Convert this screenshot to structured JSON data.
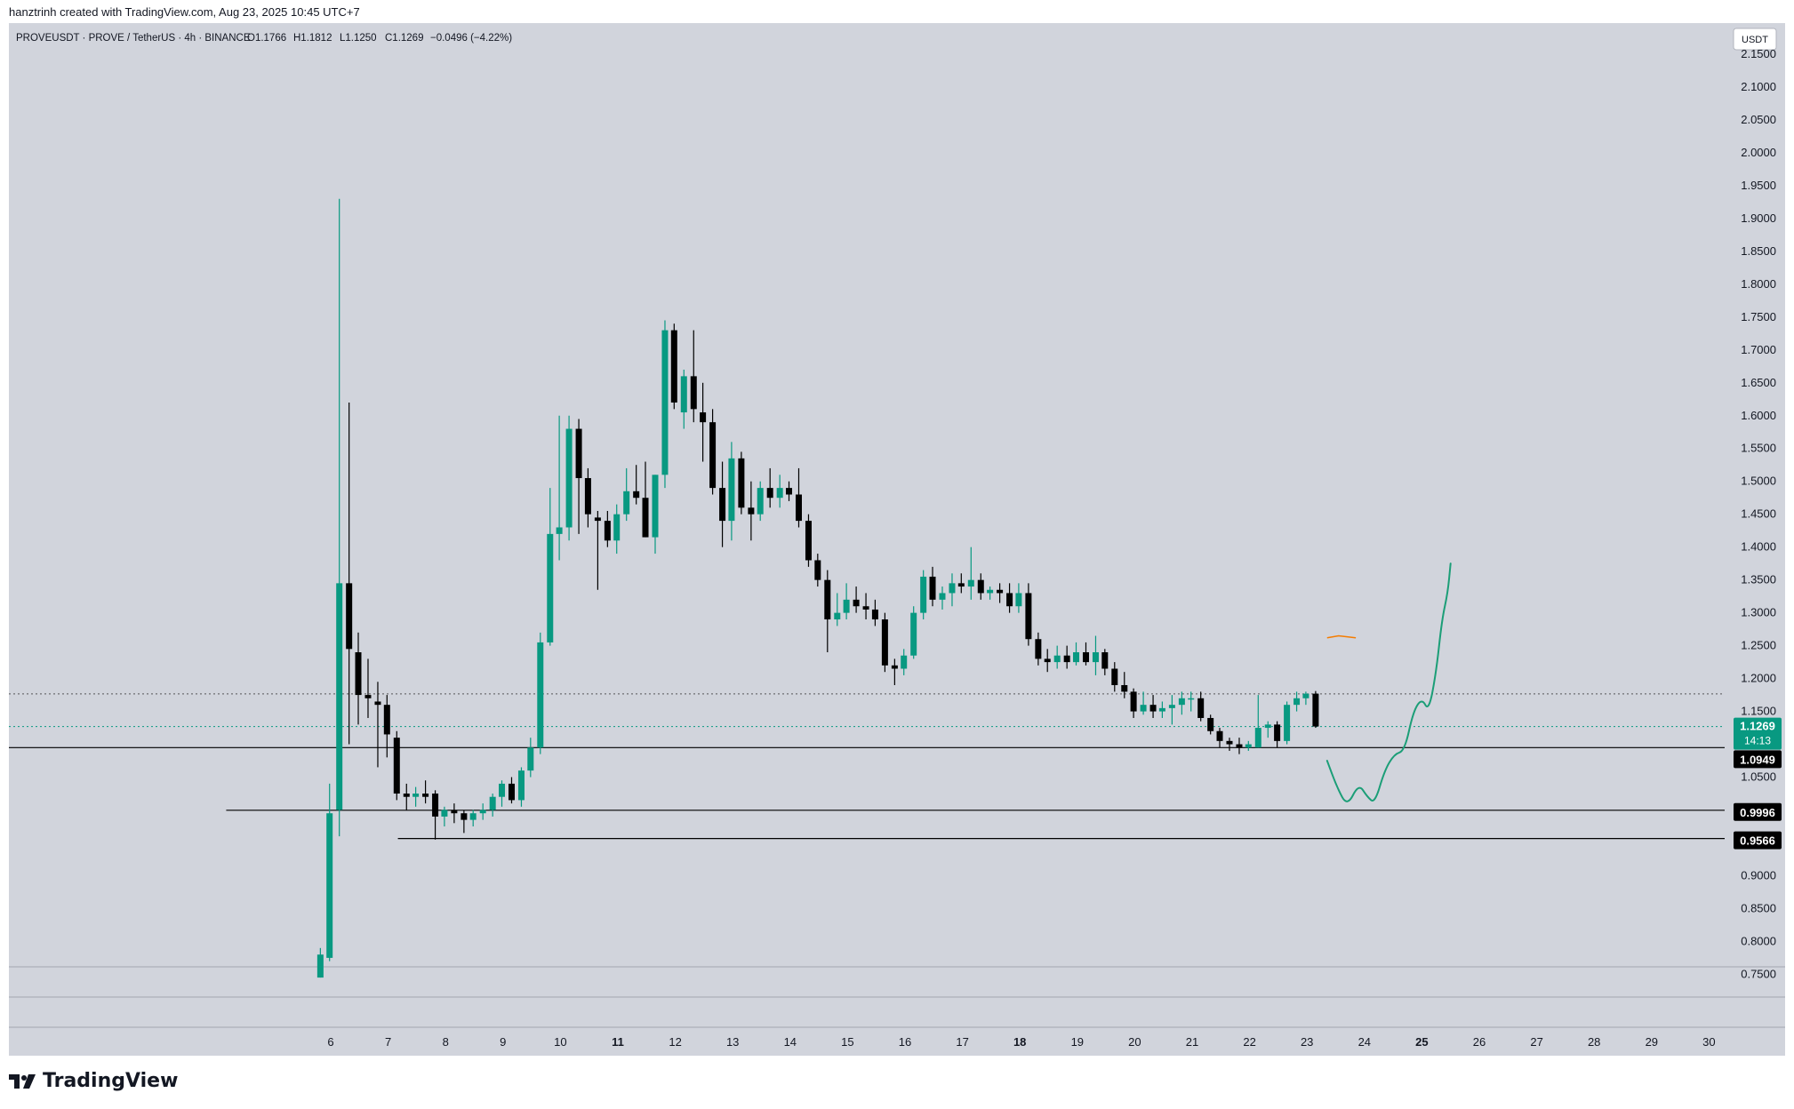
{
  "attribution": "hanztrinh created with TradingView.com, Aug 23, 2025 10:45 UTC+7",
  "logo_text": "TradingView",
  "colors": {
    "background": "#d1d4dc",
    "bull": "#089981",
    "bear": "#000000",
    "drawing": "#1b9e77",
    "orange": "#f57c00"
  },
  "legend": {
    "symbol": "PROVEUSDT · PROVE / TetherUS · 4h · BINANCE",
    "open": "O1.1766",
    "high": "H1.1812",
    "low": "L1.1250",
    "close": "C1.1269",
    "change": "−0.0496 (−4.22%)"
  },
  "currency_label": "USDT",
  "chart_data": {
    "type": "candlestick",
    "symbol": "PROVEUSDT",
    "interval": "4h",
    "exchange": "BINANCE",
    "ylim": [
      0.735,
      2.175
    ],
    "y_ticks": [
      "2.1500",
      "2.1000",
      "2.0500",
      "2.0000",
      "1.9500",
      "1.9000",
      "1.8500",
      "1.8000",
      "1.7500",
      "1.7000",
      "1.6500",
      "1.6000",
      "1.5500",
      "1.5000",
      "1.4500",
      "1.4000",
      "1.3500",
      "1.3000",
      "1.2500",
      "1.2000",
      "1.1500",
      "1.1000",
      "1.0500",
      "1.0000",
      "0.9500",
      "0.9000",
      "0.8500",
      "0.8000",
      "0.7500"
    ],
    "y_tick_values": [
      2.15,
      2.1,
      2.05,
      2.0,
      1.95,
      1.9,
      1.85,
      1.8,
      1.75,
      1.7,
      1.65,
      1.6,
      1.55,
      1.5,
      1.45,
      1.4,
      1.35,
      1.3,
      1.25,
      1.2,
      1.15,
      1.1,
      1.05,
      1.0,
      0.95,
      0.9,
      0.85,
      0.8,
      0.75
    ],
    "x_ticks": [
      {
        "label": "6",
        "day": 6,
        "bold": false
      },
      {
        "label": "7",
        "day": 7,
        "bold": false
      },
      {
        "label": "8",
        "day": 8,
        "bold": false
      },
      {
        "label": "9",
        "day": 9,
        "bold": false
      },
      {
        "label": "10",
        "day": 10,
        "bold": false
      },
      {
        "label": "11",
        "day": 11,
        "bold": true
      },
      {
        "label": "12",
        "day": 12,
        "bold": false
      },
      {
        "label": "13",
        "day": 13,
        "bold": false
      },
      {
        "label": "14",
        "day": 14,
        "bold": false
      },
      {
        "label": "15",
        "day": 15,
        "bold": false
      },
      {
        "label": "16",
        "day": 16,
        "bold": false
      },
      {
        "label": "17",
        "day": 17,
        "bold": false
      },
      {
        "label": "18",
        "day": 18,
        "bold": true
      },
      {
        "label": "19",
        "day": 19,
        "bold": false
      },
      {
        "label": "20",
        "day": 20,
        "bold": false
      },
      {
        "label": "21",
        "day": 21,
        "bold": false
      },
      {
        "label": "22",
        "day": 22,
        "bold": false
      },
      {
        "label": "23",
        "day": 23,
        "bold": false
      },
      {
        "label": "24",
        "day": 24,
        "bold": false
      },
      {
        "label": "25",
        "day": 25,
        "bold": true
      },
      {
        "label": "26",
        "day": 26,
        "bold": false
      },
      {
        "label": "27",
        "day": 27,
        "bold": false
      },
      {
        "label": "28",
        "day": 28,
        "bold": false
      },
      {
        "label": "29",
        "day": 29,
        "bold": false
      },
      {
        "label": "30",
        "day": 30,
        "bold": false
      }
    ],
    "candles": [
      {
        "t": 5.82,
        "o": 0.745,
        "h": 0.79,
        "l": 0.745,
        "c": 0.78
      },
      {
        "t": 5.98,
        "o": 0.775,
        "h": 1.04,
        "l": 0.77,
        "c": 0.995
      },
      {
        "t": 6.15,
        "o": 1.0,
        "h": 1.93,
        "l": 0.96,
        "c": 1.345
      },
      {
        "t": 6.32,
        "o": 1.345,
        "h": 1.62,
        "l": 1.1,
        "c": 1.245
      },
      {
        "t": 6.48,
        "o": 1.24,
        "h": 1.27,
        "l": 1.13,
        "c": 1.175
      },
      {
        "t": 6.65,
        "o": 1.175,
        "h": 1.23,
        "l": 1.14,
        "c": 1.17
      },
      {
        "t": 6.82,
        "o": 1.165,
        "h": 1.195,
        "l": 1.065,
        "c": 1.16
      },
      {
        "t": 6.98,
        "o": 1.16,
        "h": 1.175,
        "l": 1.08,
        "c": 1.115
      },
      {
        "t": 7.15,
        "o": 1.11,
        "h": 1.12,
        "l": 1.015,
        "c": 1.025
      },
      {
        "t": 7.32,
        "o": 1.025,
        "h": 1.04,
        "l": 1.0,
        "c": 1.02
      },
      {
        "t": 7.48,
        "o": 1.02,
        "h": 1.035,
        "l": 1.005,
        "c": 1.025
      },
      {
        "t": 7.65,
        "o": 1.025,
        "h": 1.045,
        "l": 1.01,
        "c": 1.02
      },
      {
        "t": 7.82,
        "o": 1.025,
        "h": 1.03,
        "l": 0.955,
        "c": 0.99
      },
      {
        "t": 7.98,
        "o": 0.99,
        "h": 1.005,
        "l": 0.975,
        "c": 1.0
      },
      {
        "t": 8.15,
        "o": 1.0,
        "h": 1.01,
        "l": 0.98,
        "c": 0.995
      },
      {
        "t": 8.32,
        "o": 0.995,
        "h": 1.0,
        "l": 0.965,
        "c": 0.985
      },
      {
        "t": 8.48,
        "o": 0.985,
        "h": 1.0,
        "l": 0.975,
        "c": 0.995
      },
      {
        "t": 8.65,
        "o": 0.995,
        "h": 1.01,
        "l": 0.985,
        "c": 1.0
      },
      {
        "t": 8.82,
        "o": 1.0,
        "h": 1.025,
        "l": 0.99,
        "c": 1.02
      },
      {
        "t": 8.98,
        "o": 1.02,
        "h": 1.045,
        "l": 1.005,
        "c": 1.04
      },
      {
        "t": 9.15,
        "o": 1.04,
        "h": 1.05,
        "l": 1.01,
        "c": 1.015
      },
      {
        "t": 9.32,
        "o": 1.015,
        "h": 1.065,
        "l": 1.005,
        "c": 1.06
      },
      {
        "t": 9.48,
        "o": 1.06,
        "h": 1.11,
        "l": 1.05,
        "c": 1.095
      },
      {
        "t": 9.65,
        "o": 1.095,
        "h": 1.27,
        "l": 1.085,
        "c": 1.255
      },
      {
        "t": 9.82,
        "o": 1.255,
        "h": 1.49,
        "l": 1.25,
        "c": 1.42
      },
      {
        "t": 9.98,
        "o": 1.42,
        "h": 1.6,
        "l": 1.38,
        "c": 1.43
      },
      {
        "t": 10.15,
        "o": 1.43,
        "h": 1.6,
        "l": 1.41,
        "c": 1.58
      },
      {
        "t": 10.32,
        "o": 1.58,
        "h": 1.595,
        "l": 1.42,
        "c": 1.505
      },
      {
        "t": 10.48,
        "o": 1.505,
        "h": 1.52,
        "l": 1.43,
        "c": 1.45
      },
      {
        "t": 10.65,
        "o": 1.445,
        "h": 1.455,
        "l": 1.335,
        "c": 1.44
      },
      {
        "t": 10.82,
        "o": 1.44,
        "h": 1.455,
        "l": 1.4,
        "c": 1.41
      },
      {
        "t": 10.98,
        "o": 1.41,
        "h": 1.465,
        "l": 1.39,
        "c": 1.45
      },
      {
        "t": 11.15,
        "o": 1.45,
        "h": 1.52,
        "l": 1.44,
        "c": 1.485
      },
      {
        "t": 11.32,
        "o": 1.485,
        "h": 1.525,
        "l": 1.465,
        "c": 1.475
      },
      {
        "t": 11.48,
        "o": 1.475,
        "h": 1.53,
        "l": 1.415,
        "c": 1.415
      },
      {
        "t": 11.65,
        "o": 1.415,
        "h": 1.51,
        "l": 1.39,
        "c": 1.51
      },
      {
        "t": 11.82,
        "o": 1.51,
        "h": 1.745,
        "l": 1.49,
        "c": 1.73
      },
      {
        "t": 11.98,
        "o": 1.73,
        "h": 1.74,
        "l": 1.61,
        "c": 1.62
      },
      {
        "t": 12.15,
        "o": 1.605,
        "h": 1.67,
        "l": 1.58,
        "c": 1.66
      },
      {
        "t": 12.32,
        "o": 1.66,
        "h": 1.73,
        "l": 1.59,
        "c": 1.61
      },
      {
        "t": 12.48,
        "o": 1.605,
        "h": 1.65,
        "l": 1.53,
        "c": 1.59
      },
      {
        "t": 12.65,
        "o": 1.59,
        "h": 1.61,
        "l": 1.48,
        "c": 1.49
      },
      {
        "t": 12.82,
        "o": 1.49,
        "h": 1.53,
        "l": 1.4,
        "c": 1.44
      },
      {
        "t": 12.98,
        "o": 1.44,
        "h": 1.56,
        "l": 1.41,
        "c": 1.535
      },
      {
        "t": 13.15,
        "o": 1.535,
        "h": 1.545,
        "l": 1.45,
        "c": 1.46
      },
      {
        "t": 13.32,
        "o": 1.46,
        "h": 1.5,
        "l": 1.41,
        "c": 1.45
      },
      {
        "t": 13.48,
        "o": 1.45,
        "h": 1.5,
        "l": 1.44,
        "c": 1.49
      },
      {
        "t": 13.65,
        "o": 1.49,
        "h": 1.52,
        "l": 1.46,
        "c": 1.475
      },
      {
        "t": 13.82,
        "o": 1.475,
        "h": 1.51,
        "l": 1.46,
        "c": 1.49
      },
      {
        "t": 13.98,
        "o": 1.49,
        "h": 1.5,
        "l": 1.47,
        "c": 1.48
      },
      {
        "t": 14.15,
        "o": 1.48,
        "h": 1.52,
        "l": 1.43,
        "c": 1.44
      },
      {
        "t": 14.32,
        "o": 1.44,
        "h": 1.45,
        "l": 1.37,
        "c": 1.38
      },
      {
        "t": 14.48,
        "o": 1.38,
        "h": 1.39,
        "l": 1.34,
        "c": 1.35
      },
      {
        "t": 14.65,
        "o": 1.35,
        "h": 1.365,
        "l": 1.24,
        "c": 1.29
      },
      {
        "t": 14.82,
        "o": 1.29,
        "h": 1.33,
        "l": 1.28,
        "c": 1.3
      },
      {
        "t": 14.98,
        "o": 1.3,
        "h": 1.345,
        "l": 1.29,
        "c": 1.32
      },
      {
        "t": 15.15,
        "o": 1.32,
        "h": 1.34,
        "l": 1.3,
        "c": 1.31
      },
      {
        "t": 15.32,
        "o": 1.31,
        "h": 1.33,
        "l": 1.29,
        "c": 1.305
      },
      {
        "t": 15.48,
        "o": 1.305,
        "h": 1.32,
        "l": 1.28,
        "c": 1.29
      },
      {
        "t": 15.65,
        "o": 1.29,
        "h": 1.3,
        "l": 1.21,
        "c": 1.22
      },
      {
        "t": 15.82,
        "o": 1.22,
        "h": 1.23,
        "l": 1.19,
        "c": 1.215
      },
      {
        "t": 15.98,
        "o": 1.215,
        "h": 1.245,
        "l": 1.205,
        "c": 1.235
      },
      {
        "t": 16.15,
        "o": 1.235,
        "h": 1.31,
        "l": 1.23,
        "c": 1.3
      },
      {
        "t": 16.32,
        "o": 1.3,
        "h": 1.365,
        "l": 1.29,
        "c": 1.355
      },
      {
        "t": 16.48,
        "o": 1.355,
        "h": 1.37,
        "l": 1.31,
        "c": 1.32
      },
      {
        "t": 16.65,
        "o": 1.32,
        "h": 1.34,
        "l": 1.305,
        "c": 1.33
      },
      {
        "t": 16.82,
        "o": 1.33,
        "h": 1.36,
        "l": 1.31,
        "c": 1.345
      },
      {
        "t": 16.98,
        "o": 1.345,
        "h": 1.36,
        "l": 1.33,
        "c": 1.34
      },
      {
        "t": 17.15,
        "o": 1.34,
        "h": 1.4,
        "l": 1.32,
        "c": 1.35
      },
      {
        "t": 17.32,
        "o": 1.35,
        "h": 1.36,
        "l": 1.32,
        "c": 1.33
      },
      {
        "t": 17.48,
        "o": 1.33,
        "h": 1.34,
        "l": 1.32,
        "c": 1.335
      },
      {
        "t": 17.65,
        "o": 1.335,
        "h": 1.345,
        "l": 1.315,
        "c": 1.33
      },
      {
        "t": 17.82,
        "o": 1.33,
        "h": 1.345,
        "l": 1.3,
        "c": 1.31
      },
      {
        "t": 17.98,
        "o": 1.31,
        "h": 1.345,
        "l": 1.3,
        "c": 1.33
      },
      {
        "t": 18.15,
        "o": 1.33,
        "h": 1.345,
        "l": 1.25,
        "c": 1.26
      },
      {
        "t": 18.32,
        "o": 1.26,
        "h": 1.27,
        "l": 1.22,
        "c": 1.23
      },
      {
        "t": 18.48,
        "o": 1.23,
        "h": 1.245,
        "l": 1.21,
        "c": 1.225
      },
      {
        "t": 18.65,
        "o": 1.225,
        "h": 1.25,
        "l": 1.215,
        "c": 1.235
      },
      {
        "t": 18.82,
        "o": 1.235,
        "h": 1.25,
        "l": 1.215,
        "c": 1.225
      },
      {
        "t": 18.98,
        "o": 1.225,
        "h": 1.255,
        "l": 1.22,
        "c": 1.24
      },
      {
        "t": 19.15,
        "o": 1.24,
        "h": 1.255,
        "l": 1.22,
        "c": 1.225
      },
      {
        "t": 19.32,
        "o": 1.225,
        "h": 1.265,
        "l": 1.205,
        "c": 1.24
      },
      {
        "t": 19.48,
        "o": 1.24,
        "h": 1.245,
        "l": 1.205,
        "c": 1.215
      },
      {
        "t": 19.65,
        "o": 1.215,
        "h": 1.225,
        "l": 1.18,
        "c": 1.19
      },
      {
        "t": 19.82,
        "o": 1.19,
        "h": 1.21,
        "l": 1.17,
        "c": 1.18
      },
      {
        "t": 19.98,
        "o": 1.18,
        "h": 1.185,
        "l": 1.14,
        "c": 1.15
      },
      {
        "t": 20.15,
        "o": 1.15,
        "h": 1.18,
        "l": 1.145,
        "c": 1.16
      },
      {
        "t": 20.32,
        "o": 1.16,
        "h": 1.175,
        "l": 1.14,
        "c": 1.15
      },
      {
        "t": 20.48,
        "o": 1.15,
        "h": 1.165,
        "l": 1.14,
        "c": 1.155
      },
      {
        "t": 20.65,
        "o": 1.155,
        "h": 1.175,
        "l": 1.13,
        "c": 1.16
      },
      {
        "t": 20.82,
        "o": 1.16,
        "h": 1.18,
        "l": 1.145,
        "c": 1.17
      },
      {
        "t": 20.98,
        "o": 1.17,
        "h": 1.18,
        "l": 1.15,
        "c": 1.17
      },
      {
        "t": 21.15,
        "o": 1.17,
        "h": 1.18,
        "l": 1.135,
        "c": 1.14
      },
      {
        "t": 21.32,
        "o": 1.14,
        "h": 1.145,
        "l": 1.115,
        "c": 1.12
      },
      {
        "t": 21.48,
        "o": 1.12,
        "h": 1.125,
        "l": 1.095,
        "c": 1.105
      },
      {
        "t": 21.65,
        "o": 1.105,
        "h": 1.11,
        "l": 1.09,
        "c": 1.1
      },
      {
        "t": 21.82,
        "o": 1.1,
        "h": 1.11,
        "l": 1.085,
        "c": 1.095
      },
      {
        "t": 21.98,
        "o": 1.095,
        "h": 1.105,
        "l": 1.09,
        "c": 1.1
      },
      {
        "t": 22.15,
        "o": 1.095,
        "h": 1.175,
        "l": 1.095,
        "c": 1.125
      },
      {
        "t": 22.32,
        "o": 1.125,
        "h": 1.135,
        "l": 1.11,
        "c": 1.13
      },
      {
        "t": 22.48,
        "o": 1.13,
        "h": 1.135,
        "l": 1.095,
        "c": 1.105
      },
      {
        "t": 22.65,
        "o": 1.105,
        "h": 1.165,
        "l": 1.1,
        "c": 1.16
      },
      {
        "t": 22.82,
        "o": 1.16,
        "h": 1.18,
        "l": 1.15,
        "c": 1.17
      },
      {
        "t": 22.98,
        "o": 1.17,
        "h": 1.18,
        "l": 1.16,
        "c": 1.177
      },
      {
        "t": 23.15,
        "o": 1.177,
        "h": 1.181,
        "l": 1.125,
        "c": 1.127
      }
    ],
    "horizontal_lines": [
      {
        "name": "support-line-1",
        "price": 1.0949,
        "label": "1.0949",
        "from_day": null,
        "style": "solid"
      },
      {
        "name": "support-line-2",
        "price": 0.9996,
        "label": "0.9996",
        "from_day": 4.18,
        "style": "solid"
      },
      {
        "name": "support-line-3",
        "price": 0.9566,
        "label": "0.9566",
        "from_day": 7.17,
        "style": "solid"
      },
      {
        "name": "high-line",
        "price": 1.1766,
        "label": "",
        "from_day": null,
        "style": "dotted"
      },
      {
        "name": "last-price-line",
        "price": 1.1269,
        "label": "",
        "from_day": null,
        "style": "dotted"
      }
    ],
    "last_price": {
      "value": "1.1269",
      "countdown": "14:13"
    },
    "projection_path": [
      [
        23.35,
        1.075
      ],
      [
        23.52,
        1.035
      ],
      [
        23.7,
        1.005
      ],
      [
        23.9,
        1.04
      ],
      [
        24.05,
        1.02
      ],
      [
        24.18,
        1.01
      ],
      [
        24.35,
        1.06
      ],
      [
        24.52,
        1.085
      ],
      [
        24.7,
        1.09
      ],
      [
        24.85,
        1.15
      ],
      [
        25.0,
        1.17
      ],
      [
        25.12,
        1.15
      ],
      [
        25.25,
        1.21
      ],
      [
        25.35,
        1.29
      ],
      [
        25.45,
        1.33
      ],
      [
        25.5,
        1.375
      ]
    ],
    "orange_path": [
      [
        23.35,
        1.262
      ],
      [
        23.55,
        1.265
      ],
      [
        23.75,
        1.263
      ],
      [
        23.85,
        1.262
      ]
    ]
  }
}
